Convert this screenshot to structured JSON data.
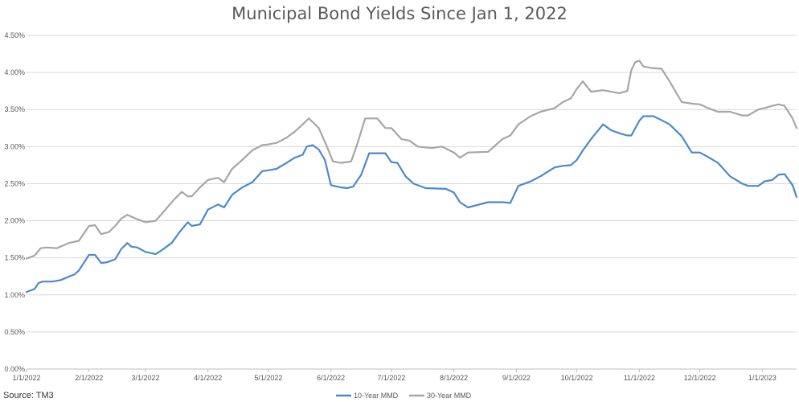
{
  "source_note": "Source: TM3",
  "chart_data": {
    "type": "line",
    "title": "Municipal Bond Yields Since Jan 1, 2022",
    "xlabel": "",
    "ylabel": "",
    "ylim": [
      0,
      4.5
    ],
    "y_ticks": [
      0,
      0.5,
      1.0,
      1.5,
      2.0,
      2.5,
      3.0,
      3.5,
      4.0,
      4.5
    ],
    "y_tick_labels": [
      "0.00%",
      "0.50%",
      "1.00%",
      "1.50%",
      "2.00%",
      "2.50%",
      "3.00%",
      "3.50%",
      "4.00%",
      "4.50%"
    ],
    "xlim": [
      "2022-01-01",
      "2023-01-18"
    ],
    "x_ticks": [
      "2022-01-01",
      "2022-02-01",
      "2022-03-01",
      "2022-04-01",
      "2022-05-01",
      "2022-06-01",
      "2022-07-01",
      "2022-08-01",
      "2022-09-01",
      "2022-10-01",
      "2022-11-01",
      "2022-12-01",
      "2023-01-01"
    ],
    "x_tick_labels": [
      "1/1/2022",
      "2/1/2022",
      "3/1/2022",
      "4/1/2022",
      "5/1/2022",
      "6/1/2022",
      "7/1/2022",
      "8/1/2022",
      "9/1/2022",
      "10/1/2022",
      "11/1/2022",
      "12/1/2022",
      "1/1/2023"
    ],
    "grid": true,
    "legend_position": "bottom",
    "series": [
      {
        "name": "10-Year MMD",
        "color": "#4a8ac9",
        "x": [
          "2022-01-01",
          "2022-01-05",
          "2022-01-07",
          "2022-01-09",
          "2022-01-14",
          "2022-01-18",
          "2022-01-25",
          "2022-01-27",
          "2022-02-01",
          "2022-02-04",
          "2022-02-07",
          "2022-02-10",
          "2022-02-14",
          "2022-02-17",
          "2022-02-20",
          "2022-02-22",
          "2022-02-25",
          "2022-03-01",
          "2022-03-06",
          "2022-03-09",
          "2022-03-14",
          "2022-03-18",
          "2022-03-22",
          "2022-03-24",
          "2022-03-28",
          "2022-04-01",
          "2022-04-06",
          "2022-04-09",
          "2022-04-13",
          "2022-04-18",
          "2022-04-23",
          "2022-04-28",
          "2022-05-01",
          "2022-05-05",
          "2022-05-10",
          "2022-05-14",
          "2022-05-18",
          "2022-05-20",
          "2022-05-23",
          "2022-05-26",
          "2022-05-29",
          "2022-06-01",
          "2022-06-06",
          "2022-06-09",
          "2022-06-12",
          "2022-06-16",
          "2022-06-20",
          "2022-06-28",
          "2022-07-01",
          "2022-07-04",
          "2022-07-08",
          "2022-07-12",
          "2022-07-18",
          "2022-07-28",
          "2022-08-01",
          "2022-08-04",
          "2022-08-08",
          "2022-08-18",
          "2022-08-25",
          "2022-08-29",
          "2022-09-02",
          "2022-09-08",
          "2022-09-13",
          "2022-09-20",
          "2022-09-24",
          "2022-09-28",
          "2022-10-01",
          "2022-10-04",
          "2022-10-08",
          "2022-10-14",
          "2022-10-18",
          "2022-10-22",
          "2022-10-26",
          "2022-10-28",
          "2022-11-01",
          "2022-11-03",
          "2022-11-08",
          "2022-11-11",
          "2022-11-16",
          "2022-11-22",
          "2022-11-27",
          "2022-12-01",
          "2022-12-05",
          "2022-12-10",
          "2022-12-16",
          "2022-12-22",
          "2022-12-25",
          "2022-12-30",
          "2023-01-02",
          "2023-01-06",
          "2023-01-09",
          "2023-01-12",
          "2023-01-16",
          "2023-01-18"
        ],
        "values": [
          1.04,
          1.08,
          1.16,
          1.18,
          1.18,
          1.2,
          1.28,
          1.33,
          1.54,
          1.54,
          1.43,
          1.44,
          1.48,
          1.62,
          1.7,
          1.65,
          1.64,
          1.58,
          1.55,
          1.6,
          1.7,
          1.85,
          1.98,
          1.93,
          1.95,
          2.15,
          2.22,
          2.18,
          2.35,
          2.45,
          2.52,
          2.67,
          2.68,
          2.7,
          2.78,
          2.85,
          2.89,
          3.0,
          3.02,
          2.96,
          2.82,
          2.48,
          2.45,
          2.44,
          2.46,
          2.62,
          2.91,
          2.91,
          2.79,
          2.78,
          2.6,
          2.5,
          2.44,
          2.43,
          2.38,
          2.25,
          2.18,
          2.25,
          2.25,
          2.24,
          2.47,
          2.53,
          2.6,
          2.72,
          2.74,
          2.75,
          2.82,
          2.95,
          3.1,
          3.3,
          3.22,
          3.18,
          3.15,
          3.15,
          3.35,
          3.41,
          3.41,
          3.37,
          3.3,
          3.14,
          2.92,
          2.92,
          2.86,
          2.78,
          2.6,
          2.5,
          2.47,
          2.47,
          2.53,
          2.55,
          2.62,
          2.63,
          2.48,
          2.32
        ]
      },
      {
        "name": "30-Year MMD",
        "color": "#a6a6a6",
        "x": [
          "2022-01-01",
          "2022-01-05",
          "2022-01-08",
          "2022-01-11",
          "2022-01-16",
          "2022-01-22",
          "2022-01-27",
          "2022-02-01",
          "2022-02-04",
          "2022-02-07",
          "2022-02-11",
          "2022-02-14",
          "2022-02-17",
          "2022-02-20",
          "2022-02-25",
          "2022-03-01",
          "2022-03-06",
          "2022-03-10",
          "2022-03-15",
          "2022-03-19",
          "2022-03-22",
          "2022-03-24",
          "2022-03-28",
          "2022-04-01",
          "2022-04-06",
          "2022-04-09",
          "2022-04-13",
          "2022-04-18",
          "2022-04-23",
          "2022-04-28",
          "2022-05-01",
          "2022-05-05",
          "2022-05-10",
          "2022-05-14",
          "2022-05-18",
          "2022-05-21",
          "2022-05-23",
          "2022-05-26",
          "2022-05-30",
          "2022-06-02",
          "2022-06-06",
          "2022-06-11",
          "2022-06-14",
          "2022-06-18",
          "2022-06-24",
          "2022-06-28",
          "2022-07-01",
          "2022-07-06",
          "2022-07-10",
          "2022-07-14",
          "2022-07-21",
          "2022-07-26",
          "2022-08-01",
          "2022-08-04",
          "2022-08-08",
          "2022-08-18",
          "2022-08-25",
          "2022-08-29",
          "2022-09-02",
          "2022-09-08",
          "2022-09-13",
          "2022-09-20",
          "2022-09-24",
          "2022-09-28",
          "2022-10-01",
          "2022-10-04",
          "2022-10-08",
          "2022-10-14",
          "2022-10-22",
          "2022-10-26",
          "2022-10-28",
          "2022-10-30",
          "2022-11-01",
          "2022-11-03",
          "2022-11-07",
          "2022-11-12",
          "2022-11-16",
          "2022-11-22",
          "2022-11-27",
          "2022-12-01",
          "2022-12-05",
          "2022-12-10",
          "2022-12-16",
          "2022-12-22",
          "2022-12-25",
          "2022-12-30",
          "2023-01-02",
          "2023-01-06",
          "2023-01-09",
          "2023-01-12",
          "2023-01-16",
          "2023-01-18"
        ],
        "values": [
          1.49,
          1.53,
          1.63,
          1.64,
          1.63,
          1.7,
          1.73,
          1.93,
          1.94,
          1.82,
          1.85,
          1.93,
          2.03,
          2.08,
          2.02,
          1.98,
          2.0,
          2.12,
          2.28,
          2.39,
          2.33,
          2.33,
          2.45,
          2.55,
          2.58,
          2.52,
          2.7,
          2.82,
          2.95,
          3.02,
          3.03,
          3.05,
          3.12,
          3.2,
          3.3,
          3.38,
          3.33,
          3.25,
          3.0,
          2.8,
          2.78,
          2.8,
          3.03,
          3.38,
          3.38,
          3.25,
          3.25,
          3.1,
          3.08,
          3.0,
          2.98,
          3.0,
          2.92,
          2.85,
          2.92,
          2.93,
          3.1,
          3.15,
          3.3,
          3.41,
          3.47,
          3.52,
          3.6,
          3.65,
          3.78,
          3.88,
          3.74,
          3.76,
          3.72,
          3.75,
          4.03,
          4.14,
          4.16,
          4.08,
          4.06,
          4.05,
          3.88,
          3.6,
          3.58,
          3.57,
          3.52,
          3.47,
          3.47,
          3.42,
          3.42,
          3.5,
          3.52,
          3.55,
          3.57,
          3.55,
          3.38,
          3.25
        ]
      }
    ]
  }
}
